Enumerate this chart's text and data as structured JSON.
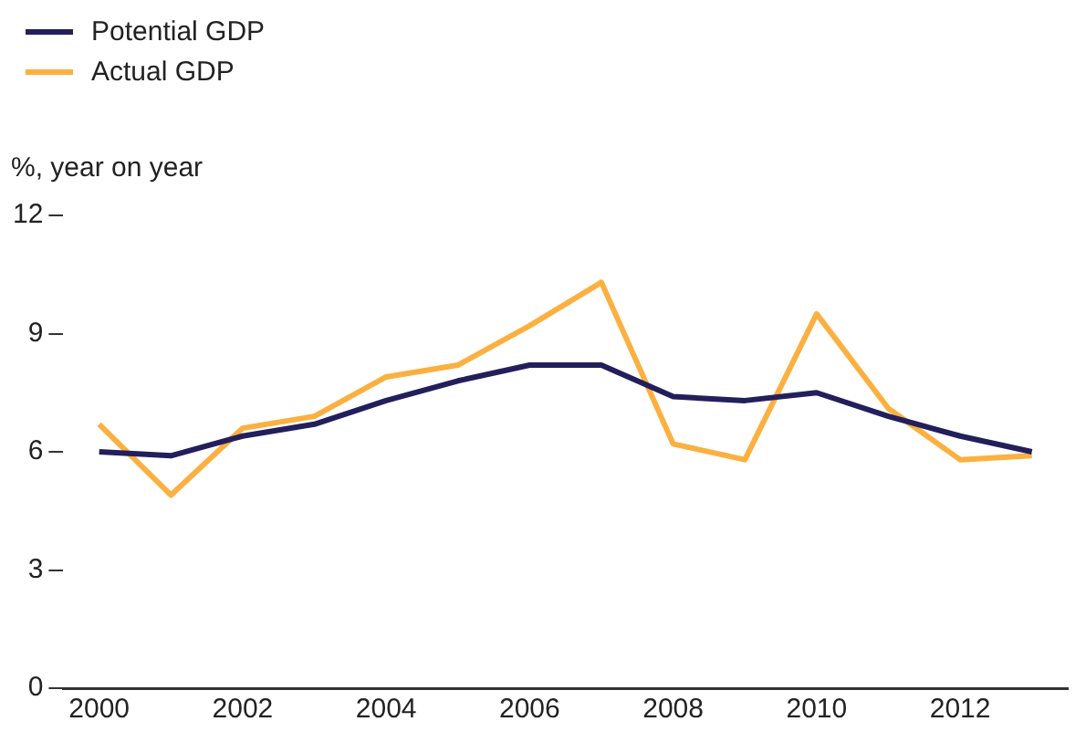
{
  "chart_data": {
    "type": "line",
    "ylabel": "%, year on year",
    "x": [
      2000,
      2001,
      2002,
      2003,
      2004,
      2005,
      2006,
      2007,
      2008,
      2009,
      2010,
      2011,
      2012,
      2013
    ],
    "series": [
      {
        "name": "Potential GDP",
        "color": "#231f5c",
        "values": [
          6.0,
          5.9,
          6.4,
          6.7,
          7.3,
          7.8,
          8.2,
          8.2,
          7.4,
          7.3,
          7.5,
          6.9,
          6.4,
          6.0
        ]
      },
      {
        "name": "Actual GDP",
        "color": "#fbb040",
        "values": [
          6.7,
          4.9,
          6.6,
          6.9,
          7.9,
          8.2,
          9.2,
          10.3,
          6.2,
          5.8,
          9.5,
          7.1,
          5.8,
          5.9
        ]
      }
    ],
    "xlim": [
      1999.5,
      2013.5
    ],
    "xticks": [
      2000,
      2002,
      2004,
      2006,
      2008,
      2010,
      2012
    ],
    "ylim": [
      0,
      12
    ],
    "yticks": [
      0,
      3,
      6,
      9,
      12
    ],
    "grid": false,
    "legend": "top left",
    "marker": "none",
    "line_style": "solid"
  }
}
